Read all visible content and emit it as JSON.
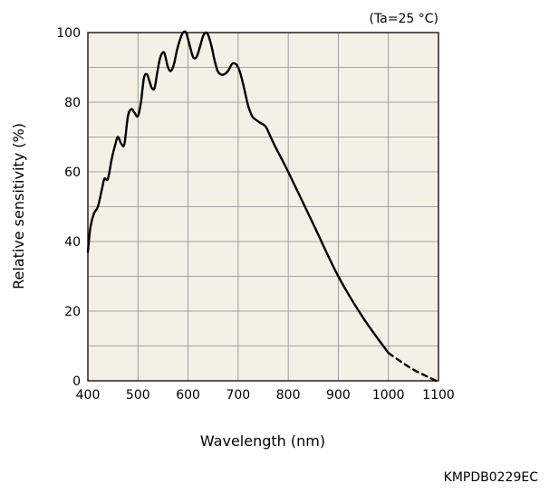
{
  "chart_data": {
    "type": "line",
    "condition": "(Ta=25 °C)",
    "xlabel": "Wavelength (nm)",
    "ylabel": "Relative sensitivity (%)",
    "xlim": [
      400,
      1100
    ],
    "ylim": [
      0,
      100
    ],
    "x_ticks": [
      400,
      500,
      600,
      700,
      800,
      900,
      1000,
      1100
    ],
    "y_ticks": [
      0,
      20,
      40,
      60,
      80,
      100
    ],
    "grid": true,
    "plot_background": "#f3f1e6",
    "line_color": "#000000",
    "series": [
      {
        "style": "solid",
        "x": [
          400,
          405,
          412,
          420,
          428,
          433,
          440,
          448,
          455,
          460,
          467,
          473,
          480,
          487,
          493,
          500,
          506,
          512,
          518,
          523,
          528,
          533,
          538,
          543,
          548,
          553,
          560,
          566,
          572,
          578,
          584,
          590,
          596,
          602,
          610,
          617,
          624,
          630,
          636,
          641,
          647,
          653,
          659,
          665,
          672,
          680,
          688,
          695,
          700,
          705,
          712,
          720,
          728,
          735,
          745,
          755,
          765,
          775,
          800,
          850,
          900,
          950,
          1000
        ],
        "y": [
          37,
          44,
          48,
          50,
          55,
          58,
          58,
          64,
          68,
          70,
          68,
          68,
          76,
          78,
          77,
          76,
          80,
          87,
          88,
          86,
          84,
          84,
          88,
          92,
          94,
          94,
          90,
          89,
          91,
          95,
          98,
          100,
          100,
          97,
          93,
          93,
          96,
          99,
          100,
          99,
          96,
          92,
          89,
          88,
          88,
          89,
          91,
          91,
          90,
          88,
          84,
          79,
          76,
          75,
          74,
          73,
          70,
          67,
          60,
          45,
          30,
          18,
          8
        ]
      },
      {
        "style": "dashed",
        "x": [
          1000,
          1025,
          1050,
          1075,
          1095
        ],
        "y": [
          8,
          5.5,
          3.2,
          1.4,
          0
        ]
      }
    ]
  },
  "footer": {
    "code": "KMPDB0229EC"
  }
}
